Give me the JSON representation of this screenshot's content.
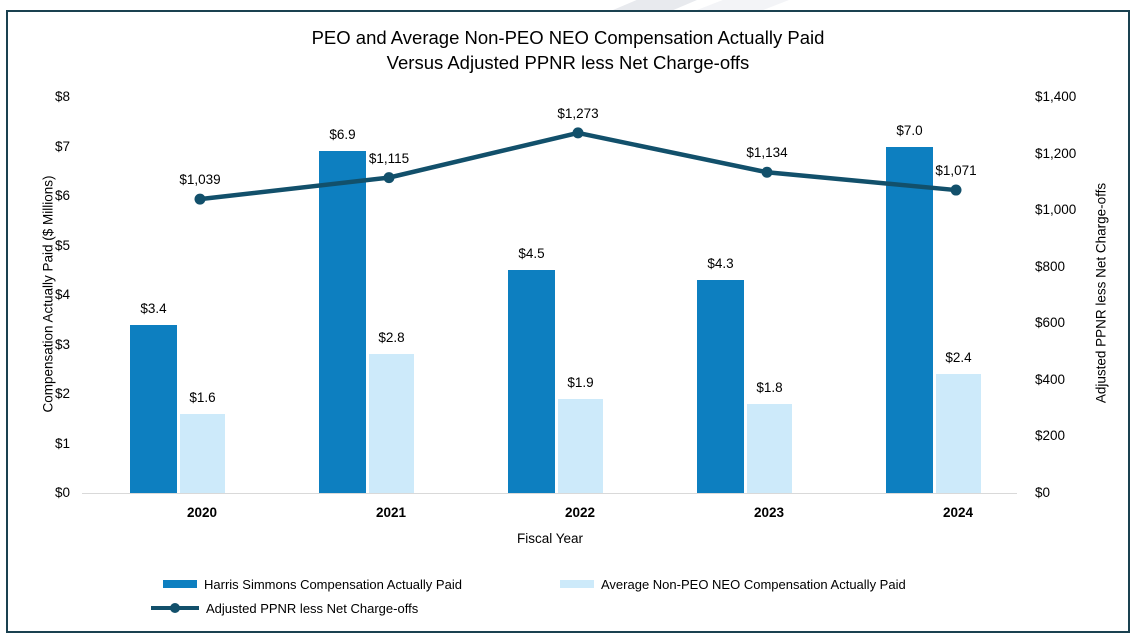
{
  "frame": {
    "border_color": "#1a4150"
  },
  "chart_data": {
    "type": "combo-bar-line",
    "title_line1": "PEO and Average Non-PEO NEO Compensation Actually Paid",
    "title_line2": "Versus Adjusted PPNR less Net Charge-offs",
    "categories": [
      "2020",
      "2021",
      "2022",
      "2023",
      "2024"
    ],
    "xlabel": "Fiscal Year",
    "left_axis": {
      "label": "Compensation Actually Paid ($ Millions)",
      "range": [
        0,
        8
      ],
      "ticks": [
        {
          "label": "$0",
          "value": 0
        },
        {
          "label": "$1",
          "value": 1
        },
        {
          "label": "$2",
          "value": 2
        },
        {
          "label": "$3",
          "value": 3
        },
        {
          "label": "$4",
          "value": 4
        },
        {
          "label": "$5",
          "value": 5
        },
        {
          "label": "$6",
          "value": 6
        },
        {
          "label": "$7",
          "value": 7
        },
        {
          "label": "$8",
          "value": 8
        }
      ]
    },
    "right_axis": {
      "label": "Adjusted PPNR less Net Charge-offs",
      "range": [
        0,
        1400
      ],
      "ticks": [
        {
          "label": "$0",
          "value": 0
        },
        {
          "label": "$200",
          "value": 200
        },
        {
          "label": "$400",
          "value": 400
        },
        {
          "label": "$600",
          "value": 600
        },
        {
          "label": "$800",
          "value": 800
        },
        {
          "label": "$1,000",
          "value": 1000
        },
        {
          "label": "$1,200",
          "value": 1200
        },
        {
          "label": "$1,400",
          "value": 1400
        }
      ]
    },
    "series": [
      {
        "name": "Harris Simmons Compensation Actually Paid",
        "type": "bar",
        "axis": "left",
        "color": "#0d7fc0",
        "values": [
          3.4,
          6.9,
          4.5,
          4.3,
          7.0
        ],
        "labels": [
          "$3.4",
          "$6.9",
          "$4.5",
          "$4.3",
          "$7.0"
        ]
      },
      {
        "name": "Average Non-PEO NEO Compensation Actually Paid",
        "type": "bar",
        "axis": "left",
        "color": "#cdeafa",
        "values": [
          1.6,
          2.8,
          1.9,
          1.8,
          2.4
        ],
        "labels": [
          "$1.6",
          "$2.8",
          "$1.9",
          "$1.8",
          "$2.4"
        ]
      },
      {
        "name": "Adjusted PPNR less Net Charge-offs",
        "type": "line",
        "axis": "right",
        "color": "#12506b",
        "values": [
          1039,
          1115,
          1273,
          1134,
          1071
        ],
        "labels": [
          "$1,039",
          "$1,115",
          "$1,273",
          "$1,134",
          "$1,071"
        ]
      }
    ],
    "legend_position": "bottom",
    "grid": "off"
  }
}
